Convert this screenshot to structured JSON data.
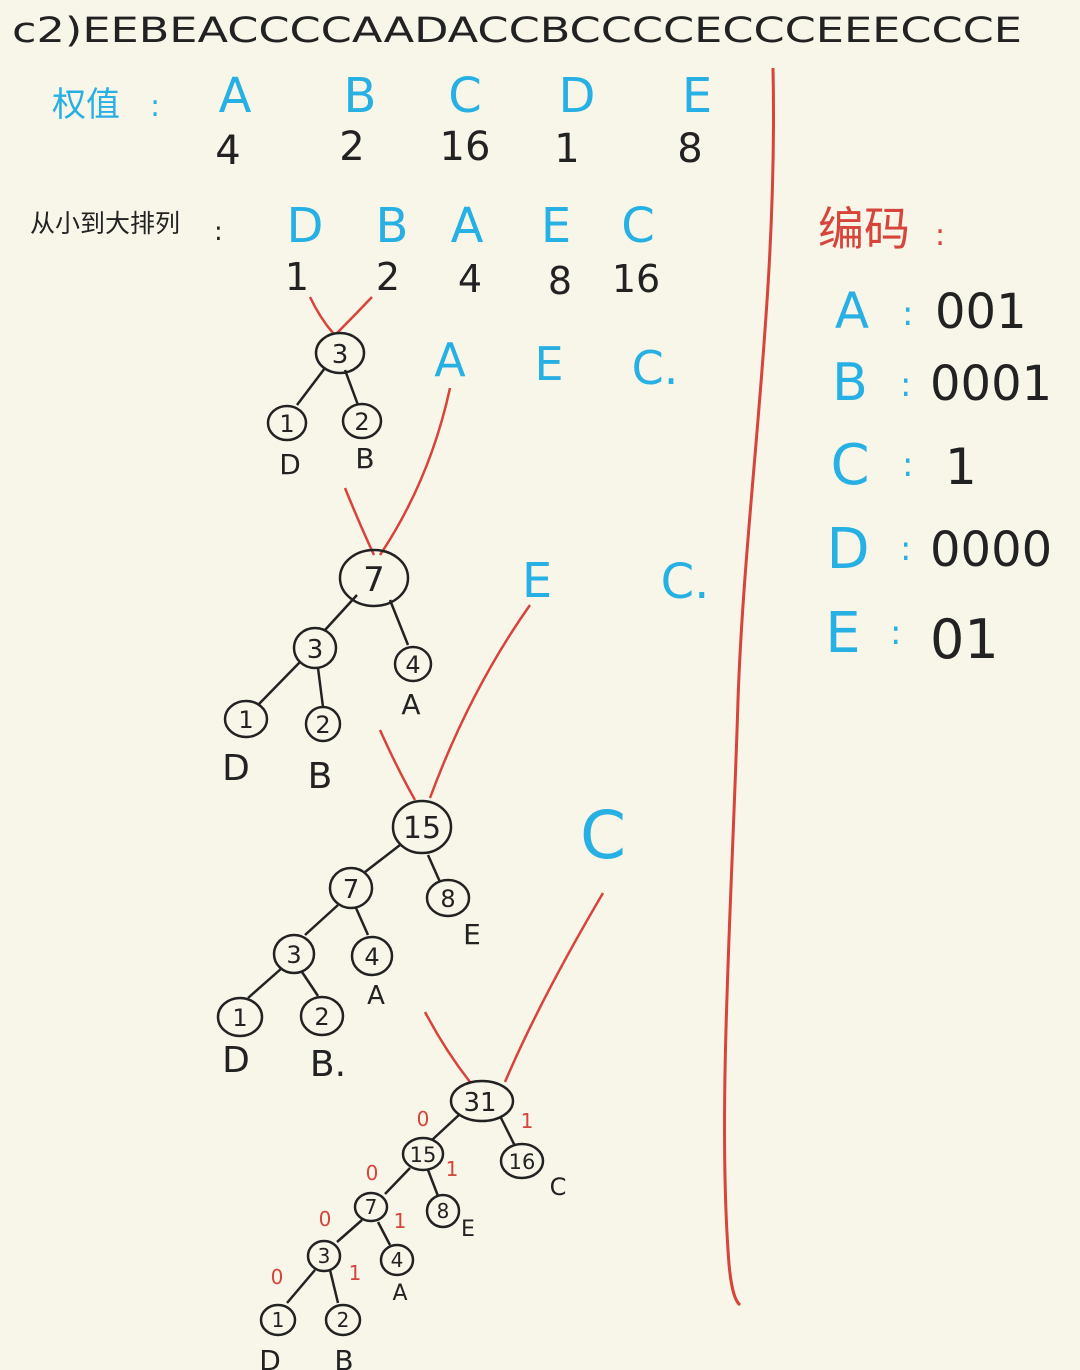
{
  "header": {
    "text": "c2)EEBEACCCCAADACCBCCCCECCCEEECCCE"
  },
  "colors": {
    "blue": "#27b0e3",
    "red": "#d6443a",
    "ink": "#222222",
    "paper": "#f8f5e9"
  },
  "weights": {
    "label": "权值",
    "colon": ":",
    "letters": [
      "A",
      "B",
      "C",
      "D",
      "E"
    ],
    "values": [
      "4",
      "2",
      "16",
      "1",
      "8"
    ]
  },
  "sorted": {
    "label": "从小到大排列",
    "colon": ":",
    "letters": [
      "D",
      "B",
      "A",
      "E",
      "C"
    ],
    "values": [
      "1",
      "2",
      "4",
      "8",
      "16"
    ]
  },
  "steps": [
    {
      "remaining": [
        "A",
        "E",
        "C."
      ]
    },
    {
      "remaining": [
        "E",
        "C."
      ]
    },
    {
      "remaining": [
        "C"
      ]
    }
  ],
  "trees": [
    {
      "nodes": [
        {
          "id": "n3",
          "v": "3"
        },
        {
          "id": "n1",
          "v": "1",
          "leaf": "D"
        },
        {
          "id": "n2",
          "v": "2",
          "leaf": "B"
        }
      ]
    },
    {
      "nodes": [
        {
          "id": "n7",
          "v": "7"
        },
        {
          "id": "n3",
          "v": "3"
        },
        {
          "id": "n4",
          "v": "4",
          "leaf": "A"
        },
        {
          "id": "n1",
          "v": "1",
          "leaf": "D"
        },
        {
          "id": "n2",
          "v": "2",
          "leaf": "B"
        }
      ]
    },
    {
      "nodes": [
        {
          "id": "n15",
          "v": "15"
        },
        {
          "id": "n7",
          "v": "7"
        },
        {
          "id": "n8",
          "v": "8",
          "leaf": "E"
        },
        {
          "id": "n3",
          "v": "3"
        },
        {
          "id": "n4",
          "v": "4",
          "leaf": "A"
        },
        {
          "id": "n1",
          "v": "1",
          "leaf": "D"
        },
        {
          "id": "n2",
          "v": "2",
          "leaf": "B."
        }
      ]
    },
    {
      "nodes": [
        {
          "id": "n31",
          "v": "31"
        },
        {
          "id": "n15",
          "v": "15"
        },
        {
          "id": "n16",
          "v": "16",
          "leaf": "C"
        },
        {
          "id": "n7",
          "v": "7"
        },
        {
          "id": "n8",
          "v": "8",
          "leaf": "E"
        },
        {
          "id": "n3",
          "v": "3"
        },
        {
          "id": "n4",
          "v": "4",
          "leaf": "A"
        },
        {
          "id": "n1",
          "v": "1",
          "leaf": "D"
        },
        {
          "id": "n2",
          "v": "2",
          "leaf": "B"
        }
      ],
      "bits": [
        "0",
        "1",
        "0",
        "1",
        "0",
        "1",
        "0",
        "1"
      ]
    }
  ],
  "codes": {
    "title": "编码",
    "colon": ":",
    "rows": [
      {
        "letter": "A",
        "code": "001"
      },
      {
        "letter": "B",
        "code": "0001"
      },
      {
        "letter": "C",
        "code": "1"
      },
      {
        "letter": "D",
        "code": "0000"
      },
      {
        "letter": "E",
        "code": "01"
      }
    ]
  }
}
